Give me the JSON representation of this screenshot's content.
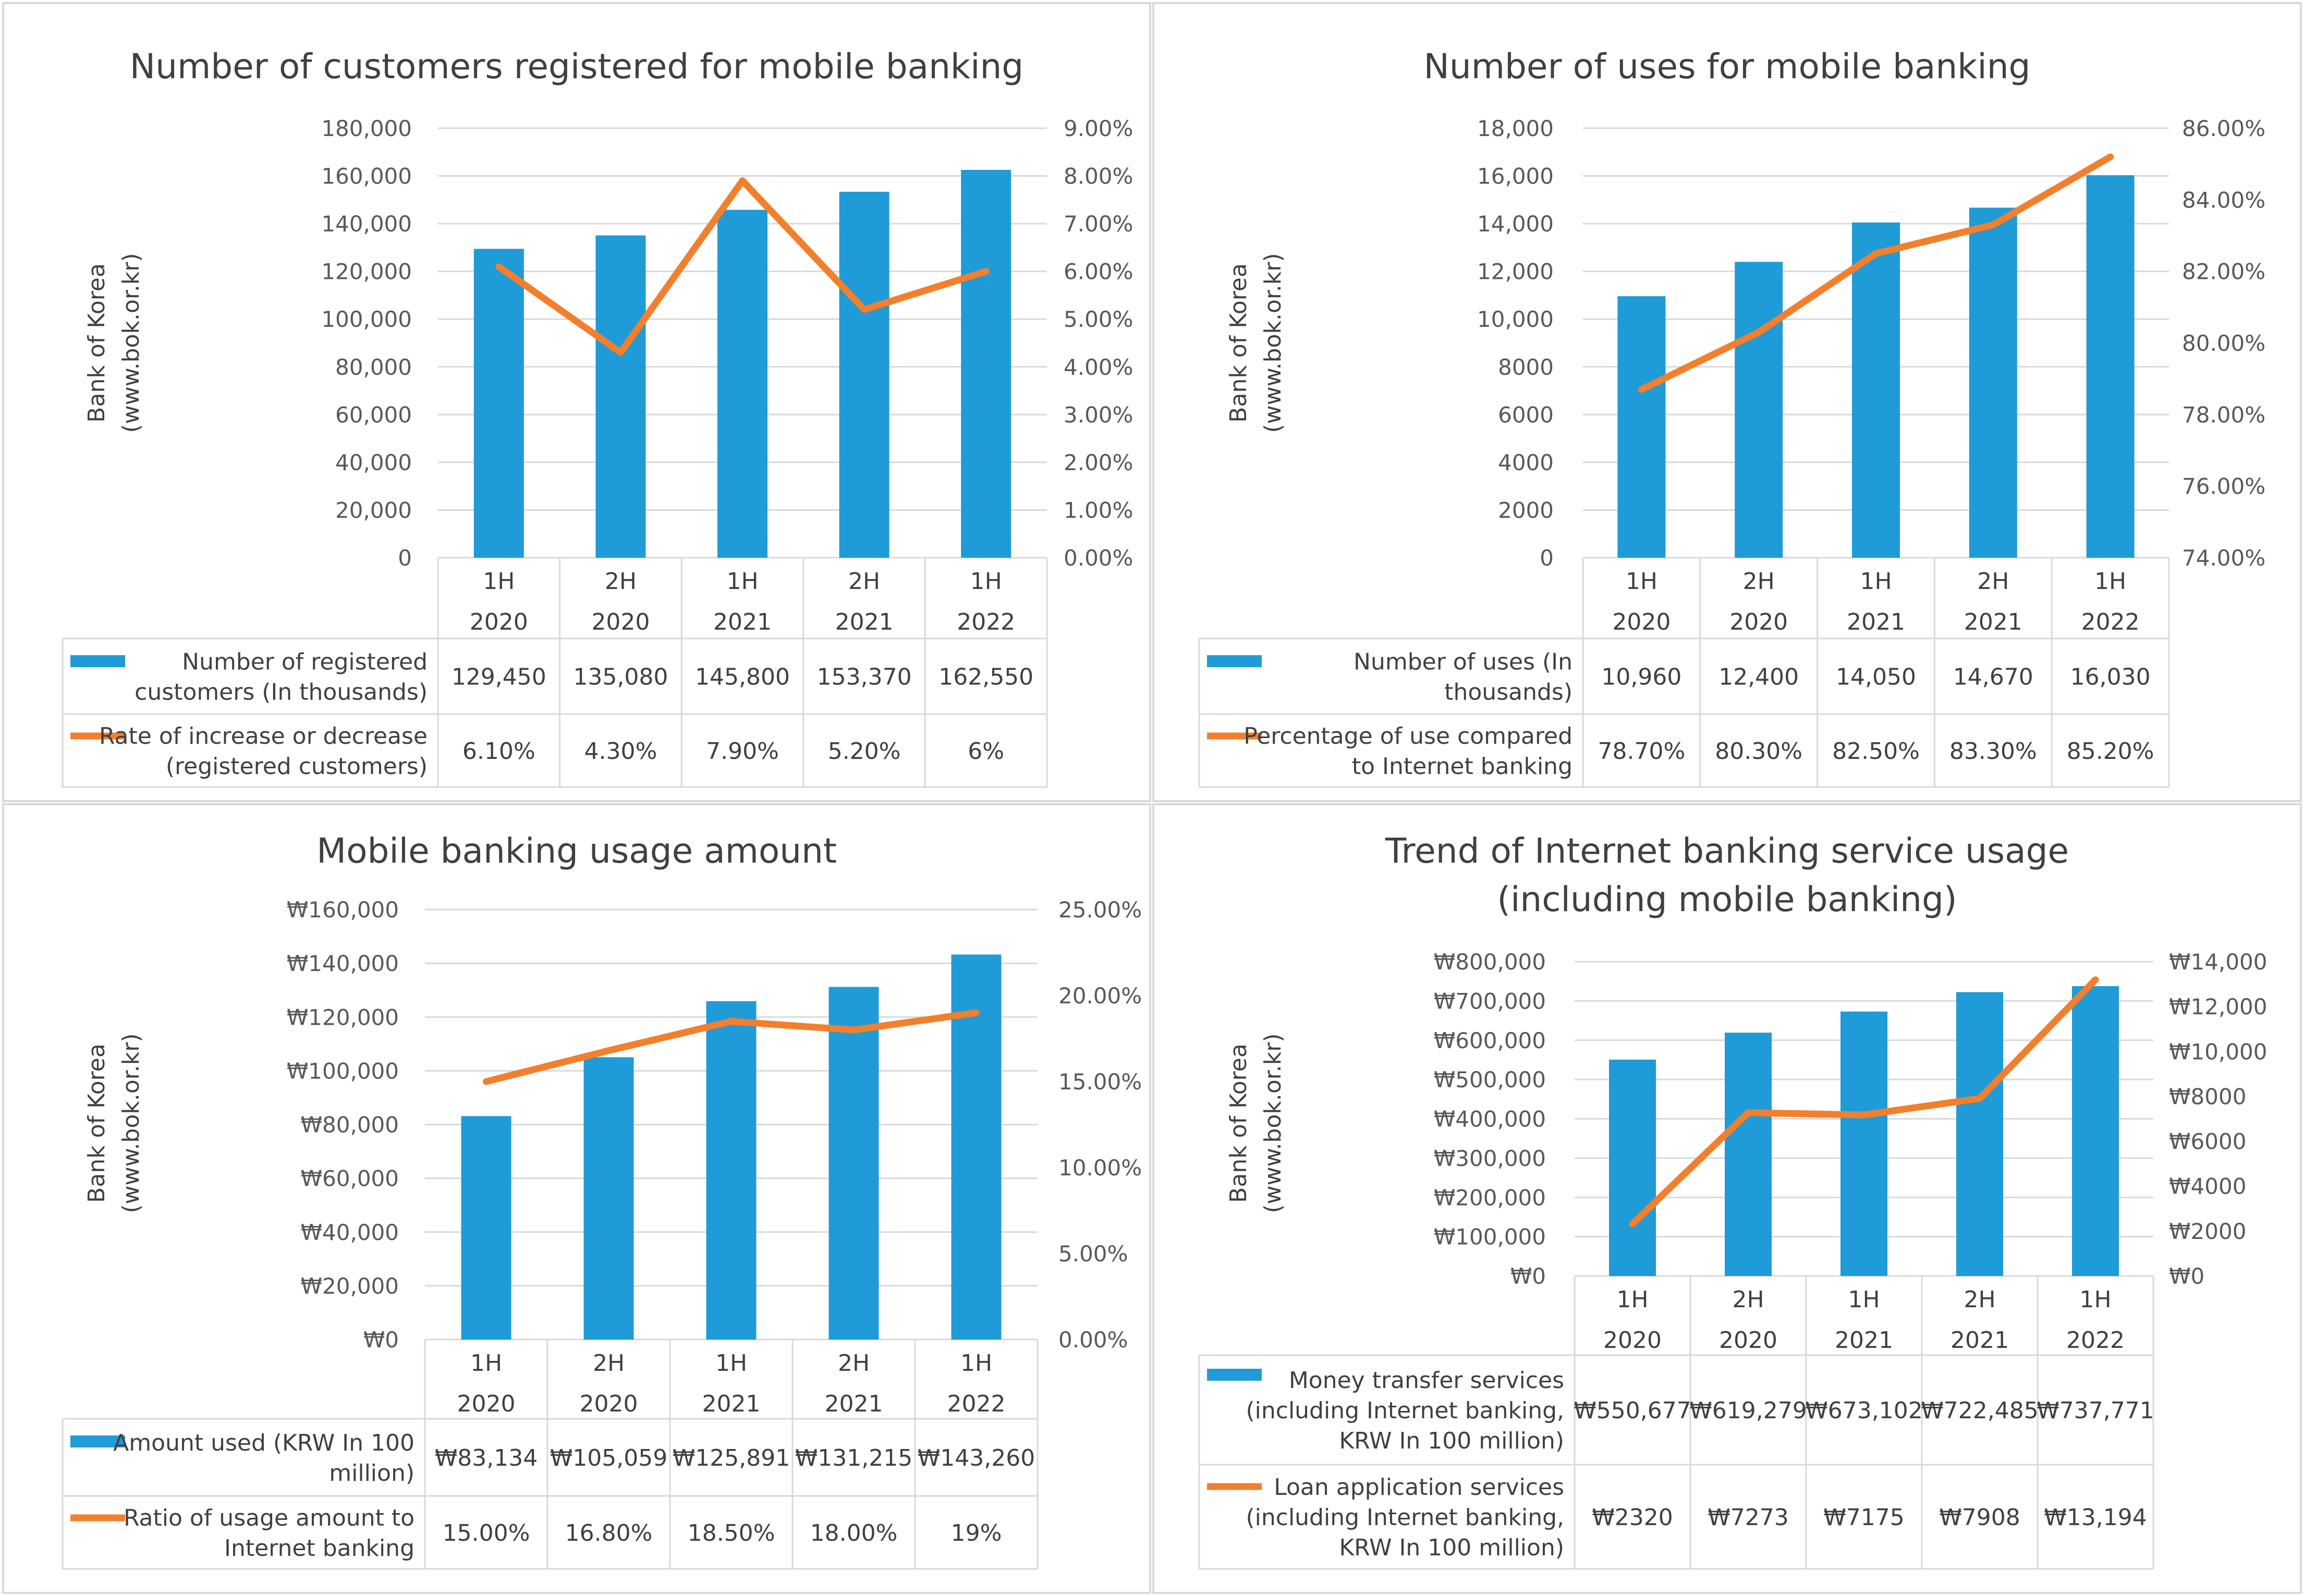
{
  "colors": {
    "bar": "#1f9bd7",
    "line": "#f37f2c",
    "grid": "#d9d9d9",
    "text": "#595959"
  },
  "source_label": [
    "Bank of Korea",
    "(www.bok.or.kr)"
  ],
  "chart_data": [
    {
      "type": "bar",
      "title": [
        "Number of customers registered for mobile banking"
      ],
      "categories": [
        [
          "1H",
          "2020"
        ],
        [
          "2H",
          "2020"
        ],
        [
          "1H",
          "2021"
        ],
        [
          "2H",
          "2021"
        ],
        [
          "1H",
          "2022"
        ]
      ],
      "left_axis": {
        "min": 0,
        "max": 180000,
        "step": 20000,
        "labels": [
          "0",
          "20,000",
          "40,000",
          "60,000",
          "80,000",
          "100,000",
          "120,000",
          "140,000",
          "160,000",
          "180,000"
        ]
      },
      "right_axis": {
        "min": 0,
        "max": 9,
        "step": 1,
        "labels": [
          "0.00%",
          "1.00%",
          "2.00%",
          "3.00%",
          "4.00%",
          "5.00%",
          "6.00%",
          "7.00%",
          "8.00%",
          "9.00%"
        ]
      },
      "series": [
        {
          "name": [
            "Number of registered",
            "customers (In thousands)"
          ],
          "kind": "bar",
          "axis": "left",
          "values": [
            129450,
            135080,
            145800,
            153370,
            162550
          ],
          "labels": [
            "129,450",
            "135,080",
            "145,800",
            "153,370",
            "162,550"
          ]
        },
        {
          "name": [
            "Rate of increase or decrease",
            "(registered customers)"
          ],
          "kind": "line",
          "axis": "right",
          "values": [
            6.1,
            4.3,
            7.9,
            5.2,
            6.0
          ],
          "labels": [
            "6.10%",
            "4.30%",
            "7.90%",
            "5.20%",
            "6%"
          ]
        }
      ]
    },
    {
      "type": "bar",
      "title": [
        "Number of uses for mobile banking"
      ],
      "categories": [
        [
          "1H",
          "2020"
        ],
        [
          "2H",
          "2020"
        ],
        [
          "1H",
          "2021"
        ],
        [
          "2H",
          "2021"
        ],
        [
          "1H",
          "2022"
        ]
      ],
      "left_axis": {
        "min": 0,
        "max": 18000,
        "step": 2000,
        "labels": [
          "0",
          "2000",
          "4000",
          "6000",
          "8000",
          "10,000",
          "12,000",
          "14,000",
          "16,000",
          "18,000"
        ]
      },
      "right_axis": {
        "min": 74,
        "max": 86,
        "step": 2,
        "labels": [
          "74.00%",
          "76.00%",
          "78.00%",
          "80.00%",
          "82.00%",
          "84.00%",
          "86.00%"
        ]
      },
      "series": [
        {
          "name": [
            "Number of uses (In",
            "thousands)"
          ],
          "kind": "bar",
          "axis": "left",
          "values": [
            10960,
            12400,
            14050,
            14670,
            16030
          ],
          "labels": [
            "10,960",
            "12,400",
            "14,050",
            "14,670",
            "16,030"
          ]
        },
        {
          "name": [
            "Percentage of use compared",
            "to Internet banking"
          ],
          "kind": "line",
          "axis": "right",
          "values": [
            78.7,
            80.3,
            82.5,
            83.3,
            85.2
          ],
          "labels": [
            "78.70%",
            "80.30%",
            "82.50%",
            "83.30%",
            "85.20%"
          ]
        }
      ]
    },
    {
      "type": "bar",
      "title": [
        "Mobile banking usage amount"
      ],
      "categories": [
        [
          "1H",
          "2020"
        ],
        [
          "2H",
          "2020"
        ],
        [
          "1H",
          "2021"
        ],
        [
          "2H",
          "2021"
        ],
        [
          "1H",
          "2022"
        ]
      ],
      "left_axis": {
        "min": 0,
        "max": 160000,
        "step": 20000,
        "labels": [
          "₩0",
          "₩20,000",
          "₩40,000",
          "₩60,000",
          "₩80,000",
          "₩100,000",
          "₩120,000",
          "₩140,000",
          "₩160,000"
        ]
      },
      "right_axis": {
        "min": 0,
        "max": 25,
        "step": 5,
        "labels": [
          "0.00%",
          "5.00%",
          "10.00%",
          "15.00%",
          "20.00%",
          "25.00%"
        ]
      },
      "series": [
        {
          "name": [
            "Amount used (KRW In 100",
            "million)"
          ],
          "kind": "bar",
          "axis": "left",
          "values": [
            83134,
            105059,
            125891,
            131215,
            143260
          ],
          "labels": [
            "₩83,134",
            "₩105,059",
            "₩125,891",
            "₩131,215",
            "₩143,260"
          ]
        },
        {
          "name": [
            "Ratio of usage amount to",
            "Internet banking"
          ],
          "kind": "line",
          "axis": "right",
          "values": [
            15.0,
            16.8,
            18.5,
            18.0,
            19.0
          ],
          "labels": [
            "15.00%",
            "16.80%",
            "18.50%",
            "18.00%",
            "19%"
          ]
        }
      ]
    },
    {
      "type": "bar",
      "title": [
        "Trend of Internet banking service usage",
        "(including mobile banking)"
      ],
      "categories": [
        [
          "1H",
          "2020"
        ],
        [
          "2H",
          "2020"
        ],
        [
          "1H",
          "2021"
        ],
        [
          "2H",
          "2021"
        ],
        [
          "1H",
          "2022"
        ]
      ],
      "left_axis": {
        "min": 0,
        "max": 800000,
        "step": 100000,
        "labels": [
          "₩0",
          "₩100,000",
          "₩200,000",
          "₩300,000",
          "₩400,000",
          "₩500,000",
          "₩600,000",
          "₩700,000",
          "₩800,000"
        ]
      },
      "right_axis": {
        "min": 0,
        "max": 14000,
        "step": 2000,
        "labels": [
          "₩0",
          "₩2000",
          "₩4000",
          "₩6000",
          "₩8000",
          "₩10,000",
          "₩12,000",
          "₩14,000"
        ]
      },
      "series": [
        {
          "name": [
            "Money transfer services",
            "(including Internet banking,",
            "KRW In 100 million)"
          ],
          "kind": "bar",
          "axis": "left",
          "values": [
            550677,
            619279,
            673102,
            722485,
            737771
          ],
          "labels": [
            "₩550,677",
            "₩619,279",
            "₩673,102",
            "₩722,485",
            "₩737,771"
          ]
        },
        {
          "name": [
            "Loan application services",
            "(including Internet banking,",
            "KRW In 100 million)"
          ],
          "kind": "line",
          "axis": "right",
          "values": [
            2320,
            7273,
            7175,
            7908,
            13194
          ],
          "labels": [
            "₩2320",
            "₩7273",
            "₩7175",
            "₩7908",
            "₩13,194"
          ]
        }
      ]
    }
  ]
}
